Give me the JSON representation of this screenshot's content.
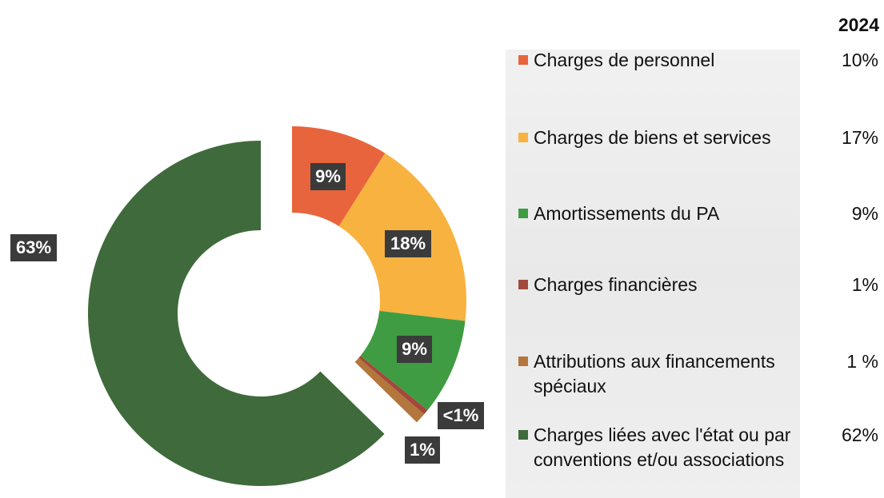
{
  "chart_data": {
    "type": "donut",
    "categories": [
      "Charges de personnel",
      "Charges de biens et services",
      "Amortissements du PA",
      "Charges financières",
      "Attributions aux financements spéciaux",
      "Charges liées avec l'état ou par conventions et/ou associations"
    ],
    "values": [
      9,
      18,
      9,
      0.5,
      1,
      63
    ],
    "value_labels": [
      "9%",
      "18%",
      "9%",
      "<1%",
      "1%",
      "63%"
    ],
    "colors": [
      "#e8643c",
      "#f8b23f",
      "#3f9c42",
      "#a2493c",
      "#b3763c",
      "#3f6a3b"
    ],
    "legend_table": {
      "header": "2024",
      "values": [
        "10%",
        "17%",
        "9%",
        "1%",
        "1 %",
        "62%"
      ]
    }
  }
}
